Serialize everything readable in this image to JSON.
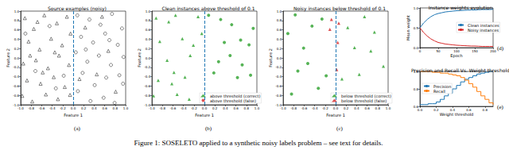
{
  "caption": "Figure 1: SOSELETO applied to a synthetic noisy labels problem – see text for details.",
  "chart_data": [
    {
      "type": "scatter",
      "panel": "(a)",
      "title": "Source examples (noisy)",
      "xlabel": "Feature 1",
      "ylabel": "Feature 2",
      "xlim": [
        -1,
        1
      ],
      "ylim": [
        -1,
        1
      ],
      "xticks": [
        {
          "value": -1,
          "label": "-1.0"
        },
        -0.8,
        -0.6,
        -0.4,
        -0.2,
        {
          "value": 0,
          "label": "0.0"
        },
        0.2,
        0.4,
        0.6,
        0.8,
        {
          "value": 1,
          "label": "1.0"
        }
      ],
      "yticks": [
        {
          "value": -1,
          "label": "-1.0"
        },
        -0.8,
        -0.6,
        -0.4,
        -0.2,
        {
          "value": 0,
          "label": "0.0"
        },
        0.2,
        0.4,
        0.6,
        0.8,
        {
          "value": 1,
          "label": "1.0"
        }
      ],
      "grid": false,
      "vline": 0,
      "series": [
        {
          "color": "#000000",
          "marker": "open_triangle",
          "values": [
            [
              -0.92,
              0.85
            ],
            [
              -0.75,
              0.62
            ],
            [
              -0.55,
              0.91
            ],
            [
              -0.31,
              0.74
            ],
            [
              -0.12,
              0.88
            ],
            [
              -0.85,
              0.35
            ],
            [
              -0.64,
              0.18
            ],
            [
              -0.42,
              0.41
            ],
            [
              -0.21,
              0.27
            ],
            [
              -0.05,
              0.52
            ],
            [
              -0.95,
              -0.12
            ],
            [
              -0.71,
              -0.05
            ],
            [
              -0.48,
              -0.22
            ],
            [
              -0.27,
              0.05
            ],
            [
              -0.08,
              -0.15
            ],
            [
              -0.88,
              -0.48
            ],
            [
              -0.62,
              -0.55
            ],
            [
              -0.37,
              -0.41
            ],
            [
              -0.16,
              -0.62
            ],
            [
              -0.97,
              -0.81
            ],
            [
              -0.78,
              -0.93
            ],
            [
              -0.52,
              -0.78
            ],
            [
              -0.29,
              -0.88
            ],
            [
              -0.06,
              -0.79
            ],
            [
              -0.68,
              0.77
            ],
            [
              -0.35,
              0.12
            ],
            [
              -0.58,
              -0.31
            ],
            [
              -0.82,
              0.05
            ],
            [
              0.23,
              0.65
            ],
            [
              0.45,
              -0.35
            ],
            [
              0.67,
              0.15
            ],
            [
              0.81,
              -0.72
            ],
            [
              0.12,
              -0.45
            ],
            [
              0.55,
              0.88
            ]
          ]
        },
        {
          "color": "#000000",
          "marker": "open_circle",
          "values": [
            [
              0.08,
              0.91
            ],
            [
              0.31,
              0.82
            ],
            [
              0.52,
              0.71
            ],
            [
              0.74,
              0.94
            ],
            [
              0.93,
              0.63
            ],
            [
              0.15,
              0.45
            ],
            [
              0.38,
              0.33
            ],
            [
              0.61,
              0.52
            ],
            [
              0.85,
              0.28
            ],
            [
              0.05,
              0.12
            ],
            [
              0.27,
              -0.08
            ],
            [
              0.49,
              0.05
            ],
            [
              0.72,
              -0.15
            ],
            [
              0.96,
              0.02
            ],
            [
              0.18,
              -0.32
            ],
            [
              0.41,
              -0.58
            ],
            [
              0.63,
              -0.42
            ],
            [
              0.88,
              -0.37
            ],
            [
              0.09,
              -0.71
            ],
            [
              0.33,
              -0.92
            ],
            [
              0.58,
              -0.85
            ],
            [
              0.79,
              -0.96
            ],
            [
              0.95,
              -0.55
            ],
            [
              0.24,
              0.18
            ],
            [
              0.69,
              0.38
            ],
            [
              -0.45,
              0.68
            ],
            [
              -0.72,
              -0.28
            ],
            [
              -0.18,
              -0.38
            ],
            [
              -0.91,
              0.52
            ],
            [
              -0.33,
              -0.65
            ]
          ]
        }
      ]
    },
    {
      "type": "scatter",
      "panel": "(b)",
      "title": "Clean instances above threshold of 0.1",
      "xlabel": "Feature 1",
      "ylabel": "Feature 2",
      "xlim": [
        -1,
        1
      ],
      "ylim": [
        -1,
        1
      ],
      "xticks": [
        {
          "value": -1,
          "label": "-1.0"
        },
        -0.8,
        -0.6,
        -0.4,
        -0.2,
        {
          "value": 0,
          "label": "0.0"
        },
        0.2,
        0.4,
        0.6,
        0.8,
        {
          "value": 1,
          "label": "1.0"
        }
      ],
      "yticks": [
        {
          "value": -1,
          "label": "-1.0"
        },
        -0.8,
        -0.6,
        -0.4,
        -0.2,
        {
          "value": 0,
          "label": "0.0"
        },
        0.2,
        0.4,
        0.6,
        0.8,
        {
          "value": 1,
          "label": "1.0"
        }
      ],
      "grid": false,
      "vline": 0,
      "legend": "lower right",
      "series": [
        {
          "name": "above threshold (correct)",
          "color": "#2ca02c",
          "marker": "triangle",
          "values": [
            [
              -0.92,
              0.85
            ],
            [
              -0.55,
              0.91
            ],
            [
              -0.12,
              0.88
            ],
            [
              -0.85,
              0.35
            ],
            [
              -0.42,
              0.41
            ],
            [
              -0.05,
              0.52
            ],
            [
              -0.71,
              -0.05
            ],
            [
              -0.27,
              0.05
            ],
            [
              -0.88,
              -0.48
            ],
            [
              -0.37,
              -0.41
            ],
            [
              -0.97,
              -0.81
            ],
            [
              -0.52,
              -0.78
            ],
            [
              -0.68,
              0.77
            ],
            [
              -0.58,
              -0.31
            ],
            [
              -0.21,
              0.27
            ],
            [
              -0.62,
              -0.55
            ],
            [
              -0.29,
              -0.88
            ]
          ]
        },
        {
          "name": "above threshold (correct)",
          "color": "#2ca02c",
          "marker": "circle",
          "values": [
            [
              0.08,
              0.91
            ],
            [
              0.52,
              0.71
            ],
            [
              0.93,
              0.63
            ],
            [
              0.38,
              0.33
            ],
            [
              0.85,
              0.28
            ],
            [
              0.27,
              -0.08
            ],
            [
              0.72,
              -0.15
            ],
            [
              0.18,
              -0.32
            ],
            [
              0.63,
              -0.42
            ],
            [
              0.69,
              0.38
            ],
            [
              0.31,
              0.82
            ],
            [
              0.49,
              0.05
            ],
            [
              0.88,
              -0.37
            ]
          ]
        },
        {
          "name": "above threshold (false)",
          "color": "#d62728",
          "marker": "circle",
          "values": []
        }
      ]
    },
    {
      "type": "scatter",
      "panel": "(c)",
      "title": "Noisy instances below threshold of 0.1",
      "xlabel": "Feature 1",
      "ylabel": "Feature 2",
      "xlim": [
        -1,
        1
      ],
      "ylim": [
        -1,
        1
      ],
      "xticks": [
        {
          "value": -1,
          "label": "-1.0"
        },
        -0.8,
        -0.6,
        -0.4,
        -0.2,
        {
          "value": 0,
          "label": "0.0"
        },
        0.2,
        0.4,
        0.6,
        0.8,
        {
          "value": 1,
          "label": "1.0"
        }
      ],
      "yticks": [
        {
          "value": -1,
          "label": "-1.0"
        },
        -0.8,
        -0.6,
        -0.4,
        -0.2,
        {
          "value": 0,
          "label": "0.0"
        },
        0.2,
        0.4,
        0.6,
        0.8,
        {
          "value": 1,
          "label": "1.0"
        }
      ],
      "grid": false,
      "vline": 0,
      "legend": "lower right",
      "series": [
        {
          "name": "below threshold (correct)",
          "color": "#2ca02c",
          "marker": "triangle",
          "values": [
            [
              0.23,
              0.65
            ],
            [
              0.45,
              -0.35
            ],
            [
              0.67,
              0.15
            ],
            [
              0.12,
              -0.45
            ],
            [
              0.55,
              0.88
            ],
            [
              0.36,
              0.22
            ],
            [
              0.74,
              0.55
            ],
            [
              0.91,
              -0.18
            ]
          ]
        },
        {
          "name": "below threshold (correct)",
          "color": "#2ca02c",
          "marker": "circle",
          "values": [
            [
              -0.45,
              0.68
            ],
            [
              -0.72,
              -0.28
            ],
            [
              -0.18,
              -0.38
            ],
            [
              -0.91,
              0.52
            ],
            [
              -0.33,
              -0.65
            ],
            [
              -0.61,
              0.21
            ],
            [
              -0.84,
              -0.77
            ],
            [
              -0.26,
              0.83
            ],
            [
              -0.53,
              -0.12
            ],
            [
              -0.77,
              0.92
            ]
          ]
        },
        {
          "name": "below threshold (false)",
          "color": "#d62728",
          "marker": "triangle",
          "values": [
            [
              -0.08,
              0.82
            ],
            [
              0.06,
              0.74
            ],
            [
              -0.11,
              0.61
            ],
            [
              0.04,
              0.33
            ],
            [
              0.02,
              -0.25
            ]
          ]
        }
      ]
    },
    {
      "type": "line",
      "panel": "(d)",
      "title": "Instance weights evolution",
      "xlabel": "Epoch",
      "ylabel": "Mean weight",
      "xlim": [
        0,
        200
      ],
      "ylim": [
        0,
        1
      ],
      "xticks": [
        0,
        50,
        100,
        150,
        200
      ],
      "yticks": [
        {
          "value": 0,
          "label": "0.0"
        },
        0.5,
        {
          "value": 1,
          "label": "1.0"
        }
      ],
      "grid": false,
      "legend": "center right",
      "x": [
        0,
        10,
        20,
        30,
        40,
        50,
        60,
        70,
        80,
        90,
        100,
        110,
        120,
        130,
        140,
        150,
        160,
        170,
        180,
        190,
        200
      ],
      "series": [
        {
          "name": "Clean instances",
          "color": "#1f77b4",
          "values": [
            0.5,
            0.62,
            0.71,
            0.78,
            0.83,
            0.86,
            0.88,
            0.9,
            0.91,
            0.92,
            0.93,
            0.935,
            0.94,
            0.945,
            0.95,
            0.95,
            0.955,
            0.96,
            0.96,
            0.96,
            0.965
          ]
        },
        {
          "name": "Noisy instances",
          "color": "#d62728",
          "values": [
            0.5,
            0.38,
            0.29,
            0.22,
            0.17,
            0.13,
            0.11,
            0.09,
            0.08,
            0.07,
            0.06,
            0.055,
            0.05,
            0.045,
            0.04,
            0.04,
            0.035,
            0.03,
            0.03,
            0.03,
            0.03
          ]
        }
      ]
    },
    {
      "type": "line",
      "panel": "(e)",
      "title": "Precision and Recall Vs. Weight threshold",
      "xlabel": "Weight threshold",
      "xlim": [
        0,
        0.9
      ],
      "ylim": [
        0.6,
        1
      ],
      "xticks": [
        {
          "value": 0,
          "label": "0.0"
        },
        0.2,
        0.4,
        0.6,
        0.8
      ],
      "yticks": [
        0.6,
        0.8,
        {
          "value": 1,
          "label": "1.0"
        }
      ],
      "grid": false,
      "legend": "center left",
      "x": [
        0,
        0.05,
        0.1,
        0.15,
        0.2,
        0.25,
        0.3,
        0.35,
        0.4,
        0.45,
        0.5,
        0.55,
        0.6,
        0.65,
        0.7,
        0.75,
        0.8,
        0.85,
        0.9
      ],
      "series": [
        {
          "name": "Precision",
          "color": "#1f77b4",
          "values": [
            0.62,
            0.62,
            0.63,
            0.63,
            0.65,
            0.68,
            0.72,
            0.75,
            0.8,
            0.84,
            0.88,
            0.91,
            0.93,
            0.95,
            0.97,
            0.98,
            0.99,
            1.0,
            1.0
          ]
        },
        {
          "name": "Recall",
          "color": "#ff7f0e",
          "values": [
            1.0,
            1.0,
            1.0,
            0.99,
            0.99,
            0.98,
            0.98,
            0.97,
            0.96,
            0.95,
            0.93,
            0.9,
            0.86,
            0.82,
            0.77,
            0.72,
            0.68,
            0.64,
            0.62
          ]
        }
      ]
    }
  ]
}
